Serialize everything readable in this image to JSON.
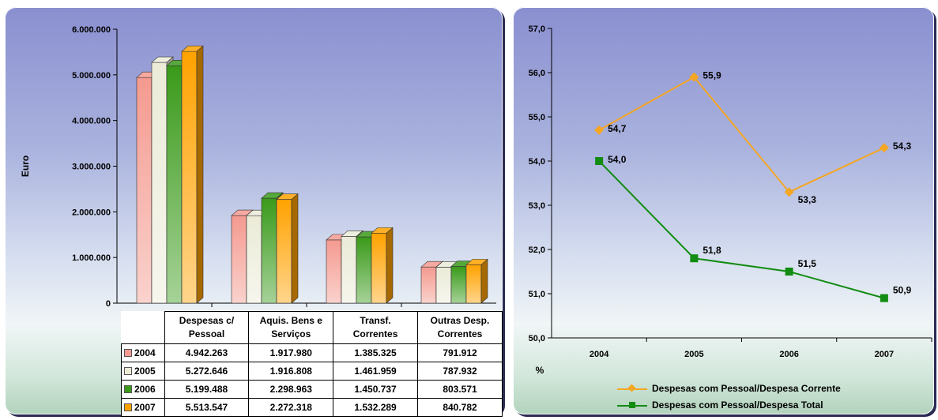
{
  "left_chart": {
    "chart_data": {
      "type": "bar",
      "ylabel": "Euro",
      "ylim": [
        0,
        6000000
      ],
      "yticks": [
        "0",
        "1.000.000",
        "2.000.000",
        "3.000.000",
        "4.000.000",
        "5.000.000",
        "6.000.000"
      ],
      "categories": [
        "Despesas c/ Pessoal",
        "Aquis. Bens e Serviços",
        "Transf. Correntes",
        "Outras Desp. Correntes"
      ],
      "category_lines": [
        [
          "Despesas c/",
          "Pessoal"
        ],
        [
          "Aquis. Bens e",
          "Serviços"
        ],
        [
          "Transf.",
          "Correntes"
        ],
        [
          "Outras Desp.",
          "Correntes"
        ]
      ],
      "series": [
        {
          "name": "2004",
          "values": [
            4942263,
            1917980,
            1385325,
            791912
          ],
          "labels": [
            "4.942.263",
            "1.917.980",
            "1.385.325",
            "791.912"
          ],
          "color": "#f49a90"
        },
        {
          "name": "2005",
          "values": [
            5272646,
            1916808,
            1461959,
            787932
          ],
          "labels": [
            "5.272.646",
            "1.916.808",
            "1.461.959",
            "787.932"
          ],
          "color": "#ebebd8"
        },
        {
          "name": "2006",
          "values": [
            5199488,
            2298963,
            1450737,
            803571
          ],
          "labels": [
            "5.199.488",
            "2.298.963",
            "1.450.737",
            "803.571"
          ],
          "color": "#3a9a1a"
        },
        {
          "name": "2007",
          "values": [
            5513547,
            2272318,
            1532289,
            840782
          ],
          "labels": [
            "5.513.547",
            "2.272.318",
            "1.532.289",
            "840.782"
          ],
          "color": "#ffa200"
        }
      ]
    }
  },
  "right_chart": {
    "chart_data": {
      "type": "line",
      "xlabel": "%",
      "categories": [
        "2004",
        "2005",
        "2006",
        "2007"
      ],
      "ylim": [
        50.0,
        57.0
      ],
      "yticks": [
        "50,0",
        "51,0",
        "52,0",
        "53,0",
        "54,0",
        "55,0",
        "56,0",
        "57,0"
      ],
      "legend_position": "bottom",
      "series": [
        {
          "name": "Despesas com Pessoal/Despesa Corrente",
          "values": [
            54.7,
            55.9,
            53.3,
            54.3
          ],
          "labels": [
            "54,7",
            "55,9",
            "53,3",
            "54,3"
          ],
          "color": "#f5a623",
          "marker": "diamond"
        },
        {
          "name": "Despesas com Pessoal/Despesa Total",
          "values": [
            54.0,
            51.8,
            51.5,
            50.9
          ],
          "labels": [
            "54,0",
            "51,8",
            "51,5",
            "50,9"
          ],
          "color": "#128c12",
          "marker": "square"
        }
      ]
    }
  }
}
